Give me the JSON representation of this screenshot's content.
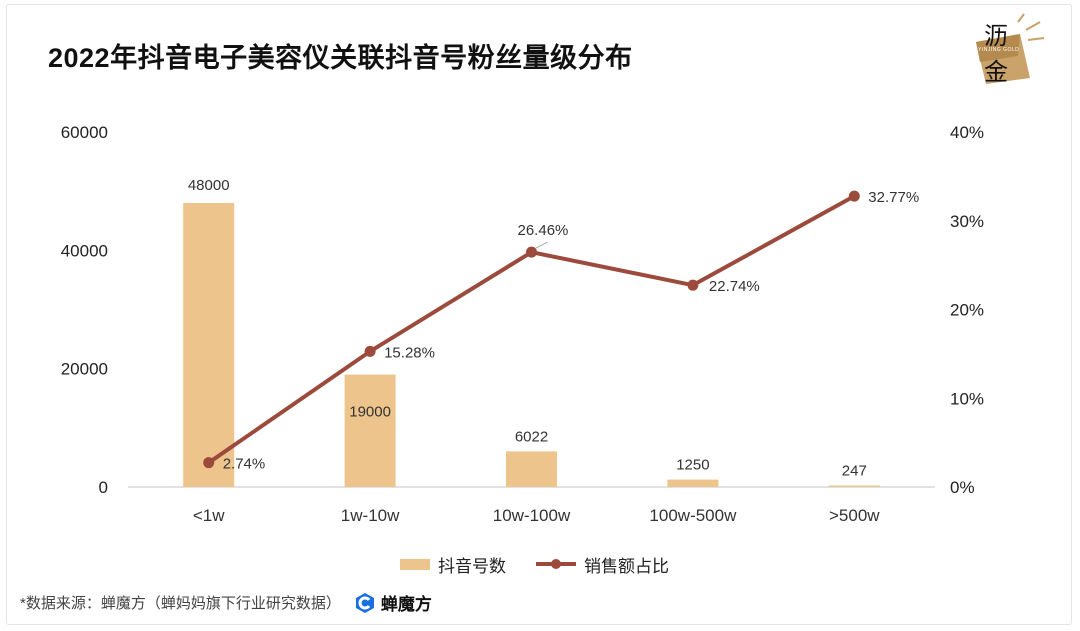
{
  "title": "2022年抖音电子美容仪关联抖音号粉丝量级分布",
  "logo": {
    "line1": "沥",
    "line2": "金",
    "sub": "YINJING GOLD"
  },
  "colors": {
    "bar": "#edc48c",
    "line": "#9c4a3c",
    "axis": "#d9d9d9"
  },
  "chart_data": {
    "type": "bar+line",
    "title": "2022年抖音电子美容仪关联抖音号粉丝量级分布",
    "categories": [
      "<1w",
      "1w-10w",
      "10w-100w",
      "100w-500w",
      ">500w"
    ],
    "series": [
      {
        "name": "抖音号数",
        "type": "bar",
        "axis": "left",
        "values": [
          48000,
          19000,
          6022,
          1250,
          247
        ]
      },
      {
        "name": "销售额占比",
        "type": "line",
        "axis": "right",
        "values": [
          2.74,
          15.28,
          26.46,
          22.74,
          32.77
        ]
      }
    ],
    "bar_labels": [
      "48000",
      "19000",
      "6022",
      "1250",
      "247"
    ],
    "line_labels": [
      "2.74%",
      "15.28%",
      "26.46%",
      "22.74%",
      "32.77%"
    ],
    "y_left": {
      "min": 0,
      "max": 60000,
      "ticks": [
        "0",
        "20000",
        "40000",
        "60000"
      ]
    },
    "y_right": {
      "min": 0,
      "max": 40,
      "ticks": [
        "0%",
        "10%",
        "20%",
        "30%",
        "40%"
      ]
    },
    "legend_position": "bottom"
  },
  "legend": {
    "bar_label": "抖音号数",
    "line_label": "销售额占比"
  },
  "source": {
    "text": "*数据来源：蝉魔方（蝉妈妈旗下行业研究数据）",
    "brand": "蝉魔方"
  }
}
